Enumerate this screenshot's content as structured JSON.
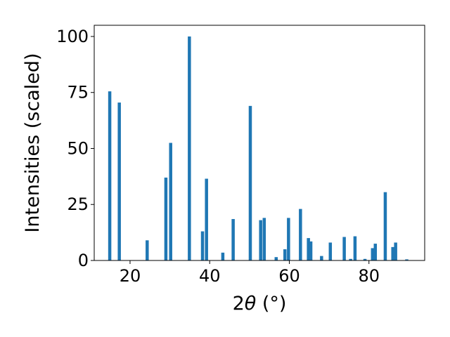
{
  "chart_data": {
    "type": "bar",
    "xlabel": "2θ (°)",
    "ylabel": "Intensities (scaled)",
    "xlim": [
      11,
      94
    ],
    "ylim": [
      0,
      105
    ],
    "xticks": [
      20,
      40,
      60,
      80
    ],
    "yticks": [
      0,
      25,
      50,
      75,
      100
    ],
    "grid": false,
    "bar_color": "#1f77b4",
    "x": [
      14.9,
      17.3,
      24.3,
      29.0,
      30.2,
      34.9,
      38.2,
      39.2,
      43.3,
      45.9,
      50.2,
      52.8,
      53.7,
      56.7,
      58.9,
      59.8,
      62.8,
      64.8,
      65.4,
      68.1,
      70.3,
      73.8,
      75.4,
      76.5,
      79.0,
      80.9,
      81.6,
      84.1,
      86.0,
      86.7,
      89.5
    ],
    "values": [
      75.5,
      70.5,
      9.0,
      37.0,
      52.5,
      100.0,
      13.0,
      36.5,
      3.5,
      18.5,
      69.0,
      18.0,
      19.0,
      1.5,
      5.0,
      19.0,
      23.0,
      10.0,
      8.5,
      2.0,
      8.0,
      10.5,
      0.7,
      10.8,
      0.7,
      5.5,
      7.5,
      30.5,
      6.0,
      8.0,
      0.5
    ]
  }
}
